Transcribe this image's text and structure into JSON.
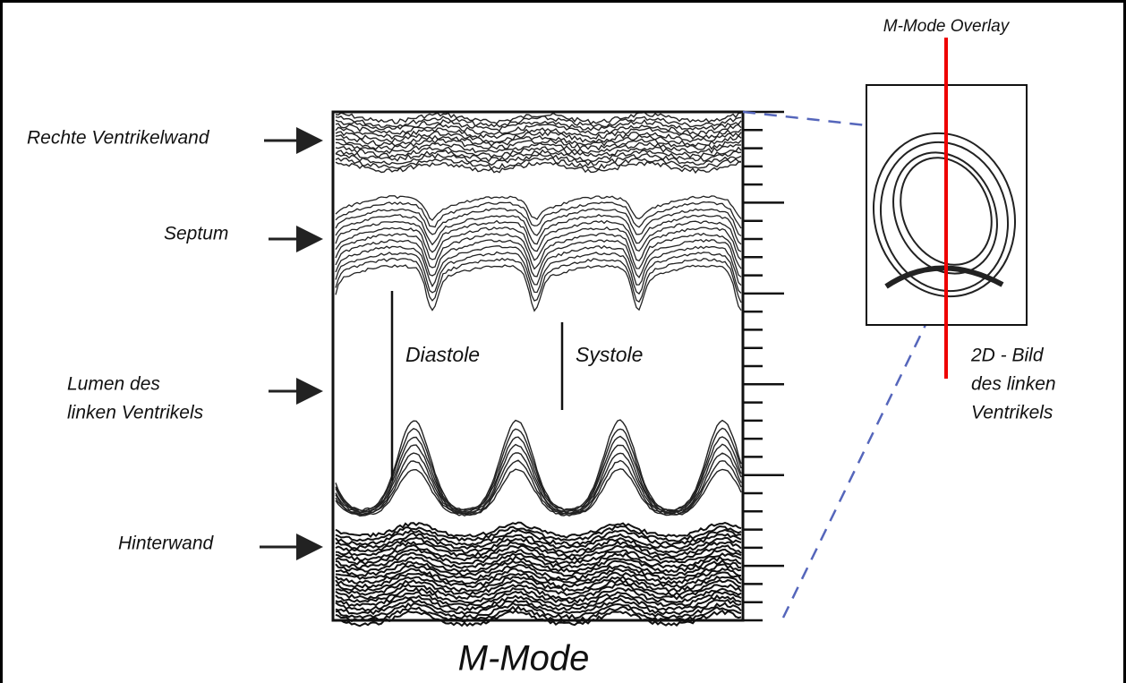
{
  "overlay_label": "M-Mode Overlay",
  "structures": [
    {
      "lines": [
        "Rechte Ventrikelwand"
      ]
    },
    {
      "lines": [
        "Septum"
      ]
    },
    {
      "lines": [
        "Lumen des",
        "linken Ventrikels"
      ]
    },
    {
      "lines": [
        "Hinterwand"
      ]
    }
  ],
  "phases": [
    "Diastole",
    "Systole"
  ],
  "image_label": {
    "lines": [
      "2D - Bild",
      "des linken",
      "Ventrikels"
    ]
  },
  "caption": "M-Mode"
}
